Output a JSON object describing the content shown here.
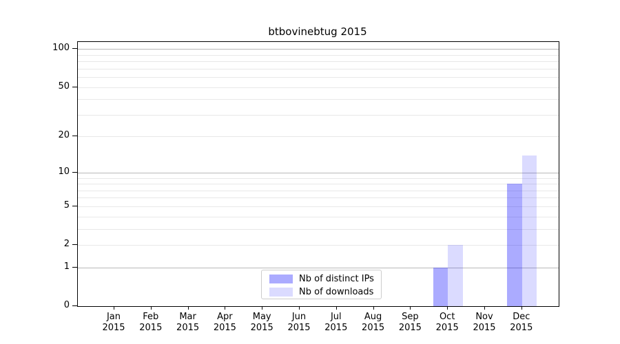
{
  "title": "btbovinebtug 2015",
  "legend": {
    "items": [
      {
        "label": "Nb of distinct IPs",
        "color": "#0000ff54"
      },
      {
        "label": "Nb of downloads",
        "color": "#0000ff24"
      }
    ]
  },
  "axes": {
    "x_year": "2015",
    "x_months": [
      "Jan",
      "Feb",
      "Mar",
      "Apr",
      "May",
      "Jun",
      "Jul",
      "Aug",
      "Sep",
      "Oct",
      "Nov",
      "Dec"
    ]
  },
  "colors": {
    "background": "#ffffff",
    "spine": "#000000",
    "grid_major": "#b8b8b8",
    "grid_minor": "#e8e8e8",
    "text": "#000000",
    "legend_border": "#cccccc",
    "bar_distinct_ips": "#0000ff54",
    "bar_downloads": "#0000ff24"
  },
  "chart_data": {
    "type": "bar",
    "title": "btbovinebtug 2015",
    "categories": [
      "Jan 2015",
      "Feb 2015",
      "Mar 2015",
      "Apr 2015",
      "May 2015",
      "Jun 2015",
      "Jul 2015",
      "Aug 2015",
      "Sep 2015",
      "Oct 2015",
      "Nov 2015",
      "Dec 2015"
    ],
    "series": [
      {
        "name": "Nb of distinct IPs",
        "color": "#0000ff54",
        "values": [
          0,
          0,
          0,
          0,
          0,
          0,
          0,
          0,
          0,
          1,
          0,
          8
        ]
      },
      {
        "name": "Nb of downloads",
        "color": "#0000ff24",
        "values": [
          0,
          0,
          0,
          0,
          0,
          0,
          0,
          0,
          0,
          2,
          0,
          14
        ]
      }
    ],
    "xlabel": "",
    "ylabel": "",
    "yscale": "log1p",
    "y_ticks_labeled": [
      0,
      1,
      2,
      5,
      10,
      20,
      50,
      100
    ],
    "y_major_gridlines": [
      1,
      10,
      100
    ],
    "y_minor_gridlines": [
      2,
      3,
      4,
      5,
      6,
      7,
      8,
      9,
      20,
      30,
      40,
      50,
      60,
      70,
      80,
      90
    ],
    "ylim": [
      0,
      113
    ],
    "grid": true,
    "legend_position": "lower center (inside axes)"
  }
}
